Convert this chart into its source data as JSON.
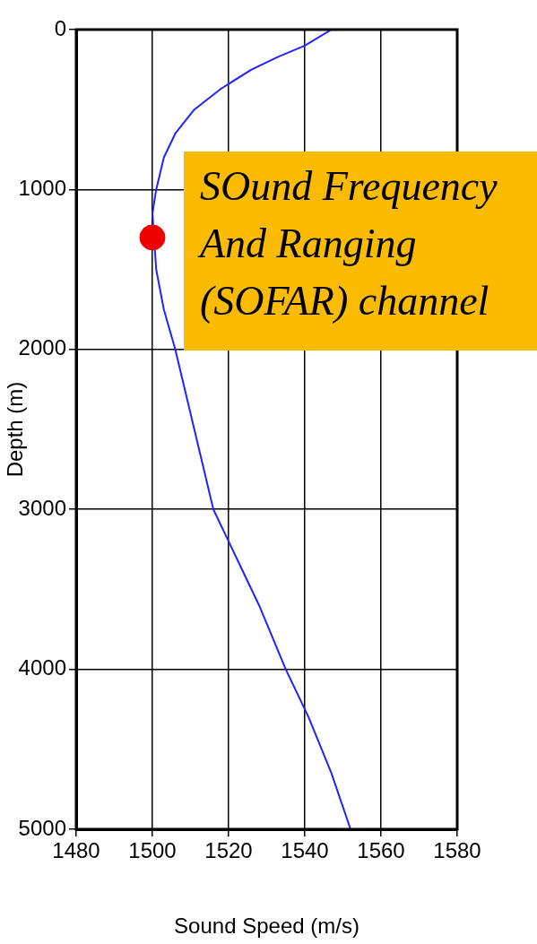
{
  "chart_data": {
    "type": "line",
    "xlabel": "Sound Speed (m/s)",
    "ylabel": "Depth (m)",
    "xlim": [
      1480,
      1580
    ],
    "xticks": [
      1480,
      1500,
      1520,
      1540,
      1560,
      1580
    ],
    "ylim": [
      5000,
      0
    ],
    "yticks": [
      0,
      1000,
      2000,
      3000,
      4000,
      5000
    ],
    "grid": true,
    "legend": false,
    "series": [
      {
        "color": "#2222ff",
        "x": [
          1547,
          1540,
          1533,
          1526,
          1518,
          1511,
          1506,
          1503,
          1501,
          1500,
          1501,
          1503,
          1506,
          1511,
          1516,
          1522,
          1528,
          1535,
          1541,
          1547,
          1552
        ],
        "values": [
          0,
          100,
          170,
          250,
          370,
          500,
          650,
          800,
          1000,
          1150,
          1500,
          1750,
          2000,
          2500,
          3000,
          3300,
          3600,
          4000,
          4300,
          4650,
          5000
        ]
      },
      {
        "type": "scatter",
        "marker": "circle",
        "color": "#ee0000",
        "x": [
          1500
        ],
        "values": [
          1300
        ]
      }
    ],
    "annotations": [
      {
        "text": "SOund Frequency And Ranging (SOFAR) channel",
        "x": 1500,
        "y": 1300
      }
    ]
  }
}
